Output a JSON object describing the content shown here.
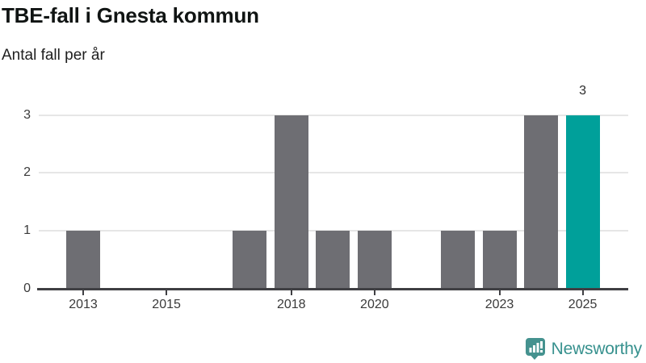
{
  "chart_data": {
    "type": "bar",
    "title": "TBE-fall i Gnesta kommun",
    "subtitle": "Antal fall per år",
    "categories": [
      2013,
      2014,
      2015,
      2016,
      2017,
      2018,
      2019,
      2020,
      2021,
      2022,
      2023,
      2024,
      2025
    ],
    "values": [
      1,
      0,
      0,
      0,
      1,
      3,
      1,
      1,
      0,
      1,
      1,
      3,
      3
    ],
    "highlight_category": 2025,
    "highlight_value_label": "3",
    "x_tick_labels": [
      "2013",
      "2015",
      "2018",
      "2020",
      "2023",
      "2025"
    ],
    "y_tick_labels": [
      "0",
      "1",
      "2",
      "3"
    ],
    "ylim": [
      0,
      3
    ],
    "xlabel": "",
    "ylabel": "Antal fall per år",
    "grid": "horizontal-only",
    "legend": "none",
    "colors": {
      "bar": "#6e6e73",
      "highlight": "#00a09a",
      "grid": "#e6e6e6",
      "axis": "#3f3f43",
      "tick_label": "#3a3a3a"
    }
  },
  "footer": {
    "brand": "Newsworthy",
    "brand_color": "#37918e",
    "logo_icon": "bar-chart-speech-bubble-icon"
  }
}
